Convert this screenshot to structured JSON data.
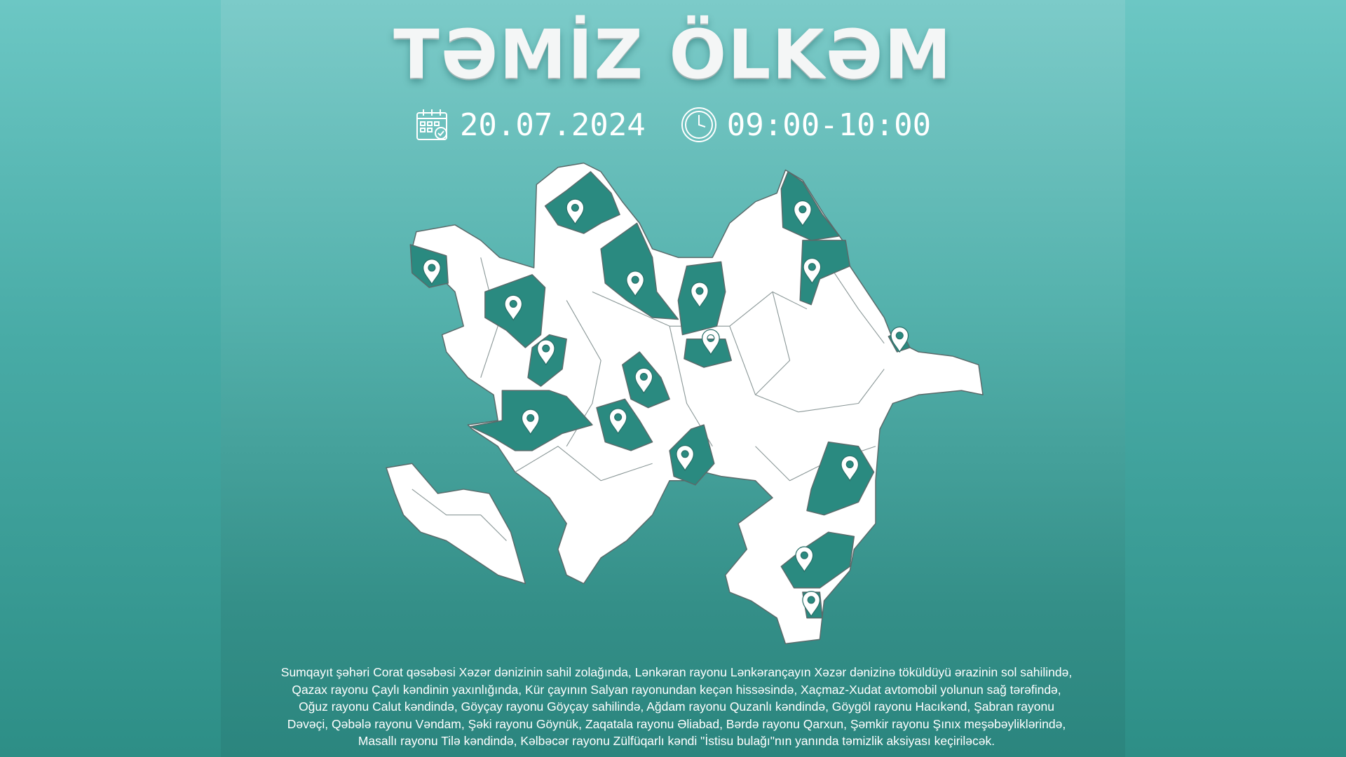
{
  "poster": {
    "title": "TƏMİZ ÖLKƏM",
    "date": "20.07.2024",
    "time": "09:00-10:00",
    "date_icon": "calendar-check-icon",
    "time_icon": "clock-icon",
    "map_pin_icon": "location-pin-icon",
    "description": "Sumqayıt şəhəri Corat qəsəbəsi Xəzər dənizinin sahil zolağında, Lənkəran rayonu Lənkərançayın Xəzər dənizinə töküldüyü ərazinin sol sahilində, Qazax rayonu Çaylı kəndinin yaxınlığında, Kür çayının Salyan rayonundan keçən hissəsində, Xaçmaz-Xudat avtomobil yolunun sağ tərəfində, Oğuz rayonu Calut kəndində, Göyçay rayonu Göyçay sahilində, Ağdam rayonu Quzanlı kəndində, Göygöl rayonu Hacıkənd, Şabran rayonu Dəvəçi, Qəbələ rayonu Vəndam, Şəki rayonu Göynük, Zaqatala rayonu Əliabad, Bərdə rayonu Qarxun, Şəmkir rayonu Şınıx meşəbəyliklərində, Masallı rayonu Tilə kəndində, Kəlbəcər rayonu Zülfüqarlı kəndi \"İstisu bulağı\"nın yanında təmizlik aksiyası keçiriləcək."
  },
  "colors": {
    "background": "#4fb0ab",
    "map_land": "#ffffff",
    "highlight_region": "#2a8a80",
    "text": "#ffffff"
  }
}
